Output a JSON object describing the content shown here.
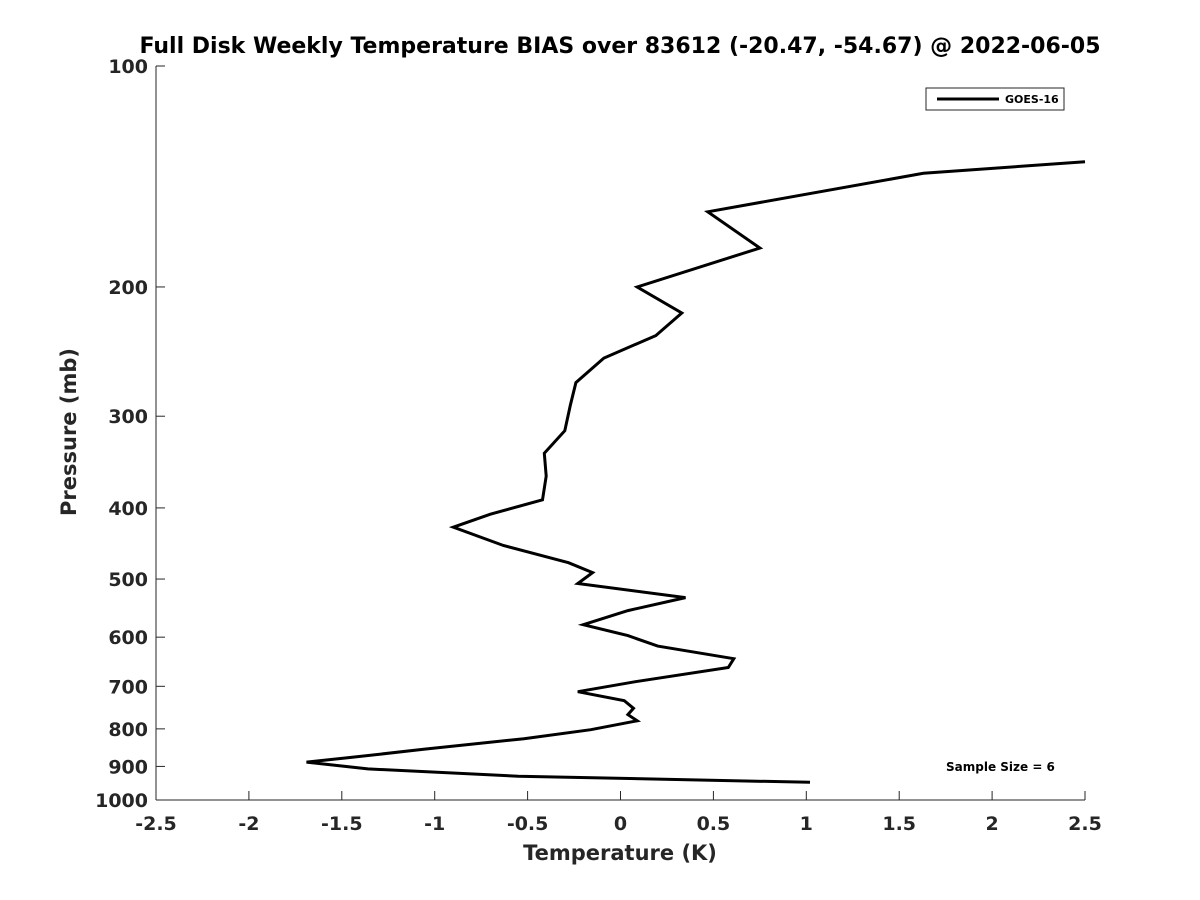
{
  "chart_data": {
    "type": "line",
    "title": "Full Disk Weekly Temperature BIAS over 83612 (-20.47, -54.67) @ 2022-06-05",
    "xlabel": "Temperature (K)",
    "ylabel": "Pressure (mb)",
    "xlim": [
      -2.5,
      2.5
    ],
    "ylim": [
      100,
      1000
    ],
    "yscale": "log",
    "yreversed": true,
    "grid": false,
    "x_ticks": [
      -2.5,
      -2,
      -1.5,
      -1,
      -0.5,
      0,
      0.5,
      1,
      1.5,
      2,
      2.5
    ],
    "x_tick_labels": [
      "-2.5",
      "-2",
      "-1.5",
      "-1",
      "-0.5",
      "0",
      "0.5",
      "1",
      "1.5",
      "2",
      "2.5"
    ],
    "y_ticks": [
      100,
      200,
      300,
      400,
      500,
      600,
      700,
      800,
      900,
      1000
    ],
    "y_tick_labels": [
      "100",
      "200",
      "300",
      "400",
      "500",
      "600",
      "700",
      "800",
      "900",
      "1000"
    ],
    "legend": {
      "entries": [
        "GOES-16"
      ],
      "placement": "top-right"
    },
    "annotation": "Sample Size = 6",
    "series": [
      {
        "name": "GOES-16",
        "color": "#000000",
        "points": [
          [
            2.5,
            135
          ],
          [
            1.63,
            140
          ],
          [
            0.47,
            158
          ],
          [
            0.75,
            177
          ],
          [
            0.09,
            200
          ],
          [
            0.33,
            217
          ],
          [
            0.19,
            233
          ],
          [
            -0.09,
            250
          ],
          [
            -0.24,
            270
          ],
          [
            -0.27,
            290
          ],
          [
            -0.3,
            314
          ],
          [
            -0.41,
            337
          ],
          [
            -0.4,
            362
          ],
          [
            -0.42,
            390
          ],
          [
            -0.7,
            408
          ],
          [
            -0.9,
            425
          ],
          [
            -0.63,
            450
          ],
          [
            -0.28,
            475
          ],
          [
            -0.15,
            490
          ],
          [
            -0.23,
            507
          ],
          [
            0.35,
            530
          ],
          [
            0.04,
            552
          ],
          [
            -0.2,
            577
          ],
          [
            0.04,
            597
          ],
          [
            0.2,
            617
          ],
          [
            0.61,
            642
          ],
          [
            0.58,
            660
          ],
          [
            0.08,
            690
          ],
          [
            -0.23,
            712
          ],
          [
            0.02,
            732
          ],
          [
            0.07,
            750
          ],
          [
            0.04,
            765
          ],
          [
            0.09,
            780
          ],
          [
            -0.16,
            802
          ],
          [
            -0.52,
            825
          ],
          [
            -1.06,
            853
          ],
          [
            -1.45,
            875
          ],
          [
            -1.69,
            888
          ],
          [
            -1.36,
            907
          ],
          [
            -0.55,
            928
          ],
          [
            1.02,
            946
          ]
        ]
      }
    ]
  }
}
